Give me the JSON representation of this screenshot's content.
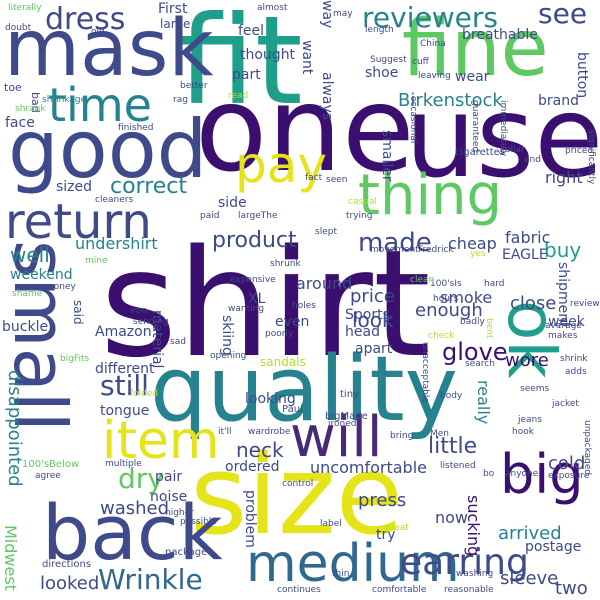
{
  "words": [
    {
      "text": "shirt",
      "color": "#3b0f70"
    },
    {
      "text": "fit",
      "color": "#1f9e89"
    },
    {
      "text": "one",
      "color": "#3b0f70"
    },
    {
      "text": "use",
      "color": "#3b0f70"
    },
    {
      "text": "size",
      "color": "#e5e419"
    },
    {
      "text": "quality",
      "color": "#26828e"
    },
    {
      "text": "good",
      "color": "#3e4a89"
    },
    {
      "text": "mask",
      "color": "#3e4a89"
    },
    {
      "text": "small",
      "color": "#3e4a89"
    },
    {
      "text": "back",
      "color": "#3e4a89"
    },
    {
      "text": "fine",
      "color": "#5ec962"
    },
    {
      "text": "ok",
      "color": "#1f9e89"
    },
    {
      "text": "will",
      "color": "#482878"
    },
    {
      "text": "medium",
      "color": "#31688e"
    },
    {
      "text": "item",
      "color": "#e5e419"
    },
    {
      "text": "big",
      "color": "#3b0f70"
    },
    {
      "text": "thing",
      "color": "#5ec962"
    },
    {
      "text": "return",
      "color": "#3e4a89"
    },
    {
      "text": "time",
      "color": "#26828e"
    },
    {
      "text": "pay",
      "color": "#e5e419"
    },
    {
      "text": "earring",
      "color": "#3e4a89"
    },
    {
      "text": "dress",
      "color": "#3e4a89"
    },
    {
      "text": "reviewers",
      "color": "#26828e"
    },
    {
      "text": "see",
      "color": "#3e4a89"
    },
    {
      "text": "dry",
      "color": "#5ec962"
    },
    {
      "text": "Wrinkle",
      "color": "#31688e"
    },
    {
      "text": "still",
      "color": "#3e4a89"
    },
    {
      "text": "made",
      "color": "#3e4a89"
    },
    {
      "text": "product",
      "color": "#3e4a89"
    },
    {
      "text": "glove",
      "color": "#3b0f70"
    },
    {
      "text": "neck",
      "color": "#3e4a89"
    },
    {
      "text": "little",
      "color": "#3e4a89"
    },
    {
      "text": "correct",
      "color": "#26828e"
    },
    {
      "text": "well",
      "color": "#26828e"
    },
    {
      "text": "Birkenstock",
      "color": "#26828e"
    },
    {
      "text": "disappointed",
      "color": "#26828e"
    },
    {
      "text": "Midwest",
      "color": "#5ec962"
    },
    {
      "text": "sucking",
      "color": "#3b0f70"
    },
    {
      "text": "arrived",
      "color": "#26828e"
    },
    {
      "text": "cold",
      "color": "#3e4a89"
    },
    {
      "text": "wore",
      "color": "#3b0f70"
    },
    {
      "text": "really",
      "color": "#26828e"
    },
    {
      "text": "enough",
      "color": "#3e4a89"
    },
    {
      "text": "press",
      "color": "#3e4a89"
    },
    {
      "text": "smoke",
      "color": "#3e4a89"
    },
    {
      "text": "close",
      "color": "#3e4a89"
    },
    {
      "text": "buy",
      "color": "#1f9e89"
    },
    {
      "text": "price",
      "color": "#3e4a89"
    },
    {
      "text": "around",
      "color": "#3e4a89"
    },
    {
      "text": "uncomfortable",
      "color": "#3e4a89"
    },
    {
      "text": "sleeve",
      "color": "#3e4a89"
    },
    {
      "text": "two",
      "color": "#3e4a89"
    },
    {
      "text": "looked",
      "color": "#3e4a89"
    },
    {
      "text": "washed",
      "color": "#3e4a89"
    },
    {
      "text": "now",
      "color": "#3e4a89"
    },
    {
      "text": "look",
      "color": "#3e4a89"
    },
    {
      "text": "try",
      "color": "#3e4a89"
    },
    {
      "text": "postage",
      "color": "#3e4a89"
    },
    {
      "text": "fabric",
      "color": "#3e4a89"
    },
    {
      "text": "EAGLE",
      "color": "#3e4a89"
    },
    {
      "text": "shipment",
      "color": "#3e4a89"
    },
    {
      "text": "week",
      "color": "#3e4a89"
    },
    {
      "text": "right",
      "color": "#3e4a89"
    },
    {
      "text": "cheap",
      "color": "#3e4a89"
    },
    {
      "text": "undershirt",
      "color": "#26828e"
    },
    {
      "text": "weekend",
      "color": "#26828e"
    },
    {
      "text": "XL",
      "color": "#3e4a89"
    },
    {
      "text": "Sports",
      "color": "#3e4a89"
    },
    {
      "text": "buckle",
      "color": "#3e4a89"
    },
    {
      "text": "head",
      "color": "#3e4a89"
    },
    {
      "text": "apart",
      "color": "#3e4a89"
    },
    {
      "text": "material",
      "color": "#3e4a89"
    },
    {
      "text": "even",
      "color": "#3e4a89"
    },
    {
      "text": "Amazon",
      "color": "#3e4a89"
    },
    {
      "text": "skiing",
      "color": "#3e4a89"
    },
    {
      "text": "different",
      "color": "#3e4a89"
    },
    {
      "text": "looking",
      "color": "#3e4a89"
    },
    {
      "text": "tongue",
      "color": "#3e4a89"
    },
    {
      "text": "ordered",
      "color": "#3e4a89"
    },
    {
      "text": "pair",
      "color": "#3e4a89"
    },
    {
      "text": "noise",
      "color": "#3e4a89"
    },
    {
      "text": "problem",
      "color": "#3e4a89"
    },
    {
      "text": "breathable",
      "color": "#3e4a89"
    },
    {
      "text": "wear",
      "color": "#3e4a89"
    },
    {
      "text": "shoe",
      "color": "#3e4a89"
    },
    {
      "text": "button",
      "color": "#3e4a89"
    },
    {
      "text": "brand",
      "color": "#3e4a89"
    },
    {
      "text": "always",
      "color": "#3e4a89"
    },
    {
      "text": "want",
      "color": "#3e4a89"
    },
    {
      "text": "way",
      "color": "#3e4a89"
    },
    {
      "text": "sized",
      "color": "#3e4a89"
    },
    {
      "text": "side",
      "color": "#3e4a89"
    },
    {
      "text": "part",
      "color": "#3e4a89"
    },
    {
      "text": "face",
      "color": "#3e4a89"
    },
    {
      "text": "feel",
      "color": "#3e4a89"
    },
    {
      "text": "thought",
      "color": "#3e4a89"
    },
    {
      "text": "smaller",
      "color": "#3e4a89"
    },
    {
      "text": "First",
      "color": "#3e4a89"
    },
    {
      "text": "large",
      "color": "#3e4a89"
    },
    {
      "text": "said",
      "color": "#3e4a89"
    },
    {
      "text": "sandals",
      "color": "#b5de2b"
    },
    {
      "text": "100'sBelow",
      "color": "#5ec962"
    },
    {
      "text": "bigFits",
      "color": "#5ec962"
    },
    {
      "text": "shame",
      "color": "#5ec962"
    },
    {
      "text": "literally",
      "color": "#5ec962"
    },
    {
      "text": "shrinkage",
      "color": "#26828e"
    },
    {
      "text": "cigarettes",
      "color": "#3e4a89"
    },
    {
      "text": "directions",
      "color": "#3e4a89"
    },
    {
      "text": "package",
      "color": "#3e4a89"
    },
    {
      "text": "comfortable",
      "color": "#3e4a89"
    },
    {
      "text": "continues",
      "color": "#3e4a89"
    },
    {
      "text": "reasonable",
      "color": "#3e4a89"
    },
    {
      "text": "thin",
      "color": "#3e4a89"
    },
    {
      "text": "washing",
      "color": "#3e4a89"
    },
    {
      "text": "great",
      "color": "#b5de2b"
    },
    {
      "text": "label",
      "color": "#3e4a89"
    },
    {
      "text": "control",
      "color": "#3e4a89"
    },
    {
      "text": "higher",
      "color": "#3e4a89"
    },
    {
      "text": "possible",
      "color": "#3e4a89"
    },
    {
      "text": "multiple",
      "color": "#3e4a89"
    },
    {
      "text": "agree",
      "color": "#3e4a89"
    },
    {
      "text": "folded",
      "color": "#b5de2b"
    },
    {
      "text": "Paul",
      "color": "#3e4a89"
    },
    {
      "text": "bigMade",
      "color": "#3e4a89"
    },
    {
      "text": "tiny",
      "color": "#3e4a89"
    },
    {
      "text": "it'll",
      "color": "#3e4a89"
    },
    {
      "text": "wardrobe",
      "color": "#3e4a89"
    },
    {
      "text": "ironed",
      "color": "#3e4a89"
    },
    {
      "text": "bring",
      "color": "#3e4a89"
    },
    {
      "text": "Men",
      "color": "#3e4a89"
    },
    {
      "text": "listened",
      "color": "#3e4a89"
    },
    {
      "text": "bo",
      "color": "#3e4a89"
    },
    {
      "text": "anyone",
      "color": "#3e4a89"
    },
    {
      "text": "exposure",
      "color": "#3e4a89"
    },
    {
      "text": "jeans",
      "color": "#3e4a89"
    },
    {
      "text": "hook",
      "color": "#3e4a89"
    },
    {
      "text": "jacket",
      "color": "#3e4a89"
    },
    {
      "text": "unpackaged",
      "color": "#3e4a89"
    },
    {
      "text": "shrink",
      "color": "#3e4a89"
    },
    {
      "text": "adds",
      "color": "#3e4a89"
    },
    {
      "text": "seems",
      "color": "#3e4a89"
    },
    {
      "text": "average",
      "color": "#3e4a89"
    },
    {
      "text": "makes",
      "color": "#3e4a89"
    },
    {
      "text": "review",
      "color": "#3e4a89"
    },
    {
      "text": "bent",
      "color": "#b5de2b"
    },
    {
      "text": "badly",
      "color": "#3e4a89"
    },
    {
      "text": "hours",
      "color": "#3e4a89"
    },
    {
      "text": "100'sIs",
      "color": "#3e4a89"
    },
    {
      "text": "hard",
      "color": "#3e4a89"
    },
    {
      "text": "clean",
      "color": "#5ec962"
    },
    {
      "text": "yes",
      "color": "#b5de2b"
    },
    {
      "text": "Fredrick",
      "color": "#3e4a89"
    },
    {
      "text": "movement",
      "color": "#3e4a89"
    },
    {
      "text": "check",
      "color": "#b5de2b"
    },
    {
      "text": "search",
      "color": "#3e4a89"
    },
    {
      "text": "body",
      "color": "#3e4a89"
    },
    {
      "text": "unacceptable",
      "color": "#3e4a89"
    },
    {
      "text": "opening",
      "color": "#3e4a89"
    },
    {
      "text": "sad",
      "color": "#3e4a89"
    },
    {
      "text": "poorly",
      "color": "#3e4a89"
    },
    {
      "text": "wanting",
      "color": "#3e4a89"
    },
    {
      "text": "holes",
      "color": "#3e4a89"
    },
    {
      "text": "iron",
      "color": "#3e4a89"
    },
    {
      "text": "sending",
      "color": "#3e4a89"
    },
    {
      "text": "money",
      "color": "#3e4a89"
    },
    {
      "text": "mine",
      "color": "#5ec962"
    },
    {
      "text": "shrunk",
      "color": "#3e4a89"
    },
    {
      "text": "expensive",
      "color": "#3e4a89"
    },
    {
      "text": "slept",
      "color": "#3e4a89"
    },
    {
      "text": "trying",
      "color": "#3e4a89"
    },
    {
      "text": "casual",
      "color": "#b5de2b"
    },
    {
      "text": "paid",
      "color": "#3e4a89"
    },
    {
      "text": "largeThe",
      "color": "#3e4a89"
    },
    {
      "text": "cleaners",
      "color": "#3e4a89"
    },
    {
      "text": "fact",
      "color": "#3e4a89"
    },
    {
      "text": "seen",
      "color": "#3e4a89"
    },
    {
      "text": "finished",
      "color": "#3e4a89"
    },
    {
      "text": "rag",
      "color": "#3e4a89"
    },
    {
      "text": "read",
      "color": "#b5de2b"
    },
    {
      "text": "better",
      "color": "#3e4a89"
    },
    {
      "text": "occasional",
      "color": "#3e4a89"
    },
    {
      "text": "guaranteed",
      "color": "#3e4a89"
    },
    {
      "text": "immediately",
      "color": "#3e4a89"
    },
    {
      "text": "significantly",
      "color": "#3e4a89"
    },
    {
      "text": "collar",
      "color": "#3e4a89"
    },
    {
      "text": "end",
      "color": "#3e4a89"
    },
    {
      "text": "priced",
      "color": "#3e4a89"
    },
    {
      "text": "leaving",
      "color": "#3e4a89"
    },
    {
      "text": "China",
      "color": "#3e4a89"
    },
    {
      "text": "Suggest",
      "color": "#3e4a89"
    },
    {
      "text": "cuff",
      "color": "#3e4a89"
    },
    {
      "text": "length",
      "color": "#3e4a89"
    },
    {
      "text": "almost",
      "color": "#3e4a89"
    },
    {
      "text": "may",
      "color": "#3e4a89"
    },
    {
      "text": "doubt",
      "color": "#3e4a89"
    },
    {
      "text": "old",
      "color": "#3e4a89"
    },
    {
      "text": "toe",
      "color": "#3e4a89"
    },
    {
      "text": "bad",
      "color": "#3e4a89"
    },
    {
      "text": "shrank",
      "color": "#5ec962"
    }
  ]
}
